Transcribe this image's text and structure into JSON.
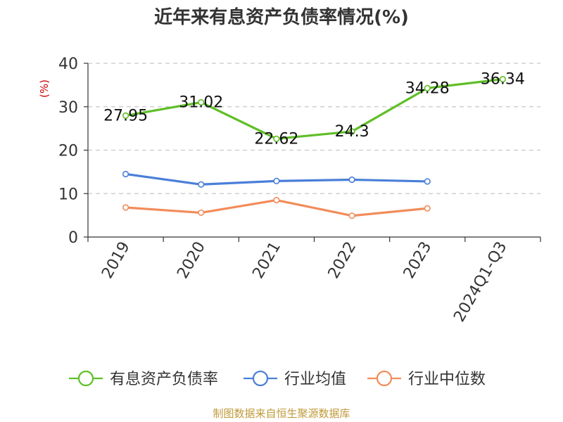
{
  "chart_data": {
    "type": "line",
    "title": "近年来有息资产负债率情况(%)",
    "ylabel": "(%)",
    "xlabel": "",
    "ylim": [
      0,
      40
    ],
    "yticks": [
      0,
      10,
      20,
      30,
      40
    ],
    "grid": true,
    "legend_position": "bottom",
    "categories": [
      "2019",
      "2020",
      "2021",
      "2022",
      "2023",
      "2024Q1-Q3"
    ],
    "series": [
      {
        "name": "有息资产负债率",
        "color": "#5fbf26",
        "values": [
          27.95,
          31.02,
          22.62,
          24.3,
          34.28,
          36.34
        ],
        "labels": [
          "27.95",
          "31.02",
          "22.62",
          "24.3",
          "34.28",
          "36.34"
        ]
      },
      {
        "name": "行业均值",
        "color": "#4a7fd8",
        "values": [
          14.5,
          12.1,
          12.9,
          13.2,
          12.8,
          null
        ]
      },
      {
        "name": "行业中位数",
        "color": "#f28c5a",
        "values": [
          6.8,
          5.6,
          8.5,
          4.9,
          6.6,
          null
        ]
      }
    ],
    "source": "制图数据来自恒生聚源数据库"
  }
}
